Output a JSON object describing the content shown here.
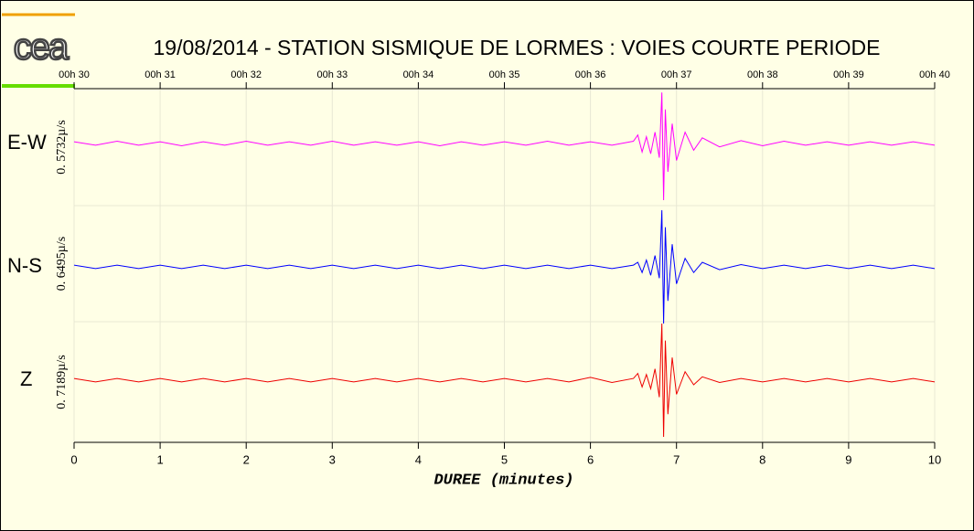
{
  "chart_data": {
    "type": "seismogram",
    "logo": "cea",
    "title": "19/08/2014  -  STATION SISMIQUE DE LORMES : VOIES COURTE PERIODE",
    "xlabel": "DUREE (minutes)",
    "xlim": [
      0,
      10
    ],
    "xticks": [
      0,
      1,
      2,
      3,
      4,
      5,
      6,
      7,
      8,
      9,
      10
    ],
    "top_ticks": [
      {
        "value": 0,
        "label": "00h 30"
      },
      {
        "value": 1,
        "label": "00h 31"
      },
      {
        "value": 2,
        "label": "00h 32"
      },
      {
        "value": 3,
        "label": "00h 33"
      },
      {
        "value": 4,
        "label": "00h 34"
      },
      {
        "value": 5,
        "label": "00h 35"
      },
      {
        "value": 6,
        "label": "00h 36"
      },
      {
        "value": 7,
        "label": "00h 37"
      },
      {
        "value": 8,
        "label": "00h 38"
      },
      {
        "value": 9,
        "label": "00h 39"
      },
      {
        "value": 10,
        "label": "00h 40"
      }
    ],
    "ylim": [
      -1,
      1
    ],
    "grid": true,
    "x": [
      0,
      0.25,
      0.5,
      0.75,
      1,
      1.25,
      1.5,
      1.75,
      2,
      2.25,
      2.5,
      2.75,
      3,
      3.25,
      3.5,
      3.75,
      4,
      4.25,
      4.5,
      4.75,
      5,
      5.25,
      5.5,
      5.75,
      6,
      6.25,
      6.5,
      6.55,
      6.6,
      6.65,
      6.7,
      6.75,
      6.8,
      6.83,
      6.85,
      6.87,
      6.9,
      6.95,
      7,
      7.1,
      7.2,
      7.3,
      7.5,
      7.75,
      8,
      8.25,
      8.5,
      8.75,
      9,
      9.25,
      9.5,
      9.75,
      10
    ],
    "series": [
      {
        "name": "E-W",
        "scale_label": "0. 5732µ/s",
        "color": "#ff00ff",
        "values": [
          0.03,
          -0.03,
          0.04,
          -0.03,
          0.03,
          -0.04,
          0.03,
          -0.03,
          0.04,
          -0.03,
          0.03,
          -0.03,
          0.04,
          -0.03,
          0.03,
          -0.03,
          0.03,
          -0.04,
          0.03,
          -0.03,
          0.03,
          -0.03,
          0.04,
          -0.03,
          0.03,
          -0.03,
          0.04,
          0.15,
          -0.15,
          0.12,
          -0.18,
          0.2,
          -0.25,
          0.9,
          -1,
          0.6,
          -0.5,
          0.35,
          -0.3,
          0.2,
          -0.12,
          0.1,
          -0.06,
          0.05,
          -0.04,
          0.04,
          -0.03,
          0.03,
          -0.03,
          0.03,
          -0.03,
          0.03,
          -0.03
        ]
      },
      {
        "name": "N-S",
        "scale_label": "0. 6495µ/s",
        "color": "#0000ff",
        "values": [
          0.03,
          -0.03,
          0.03,
          -0.03,
          0.03,
          -0.03,
          0.03,
          -0.03,
          0.03,
          -0.03,
          0.03,
          -0.03,
          0.03,
          -0.03,
          0.03,
          -0.03,
          0.03,
          -0.03,
          0.03,
          -0.03,
          0.03,
          -0.03,
          0.03,
          -0.03,
          0.03,
          -0.03,
          0.03,
          0.08,
          -0.1,
          0.12,
          -0.15,
          0.2,
          -0.2,
          1,
          -1,
          0.7,
          -0.6,
          0.4,
          -0.3,
          0.15,
          -0.1,
          0.08,
          -0.05,
          0.04,
          -0.03,
          0.03,
          -0.03,
          0.03,
          -0.03,
          0.03,
          -0.03,
          0.03,
          -0.03
        ]
      },
      {
        "name": "Z",
        "scale_label": "0. 7189µ/s",
        "color": "#ee0000",
        "values": [
          0.03,
          -0.03,
          0.03,
          -0.03,
          0.03,
          -0.03,
          0.03,
          -0.03,
          0.03,
          -0.03,
          0.03,
          -0.03,
          0.03,
          -0.03,
          0.03,
          -0.03,
          0.03,
          -0.03,
          0.03,
          -0.03,
          0.03,
          -0.03,
          0.03,
          -0.03,
          0.05,
          -0.04,
          0.03,
          0.12,
          -0.12,
          0.1,
          -0.15,
          0.2,
          -0.3,
          1,
          -1,
          0.7,
          -0.6,
          0.4,
          -0.25,
          0.15,
          -0.08,
          0.06,
          -0.04,
          0.03,
          -0.03,
          0.03,
          -0.03,
          0.03,
          -0.03,
          0.03,
          -0.03,
          0.03,
          -0.03
        ]
      }
    ]
  }
}
